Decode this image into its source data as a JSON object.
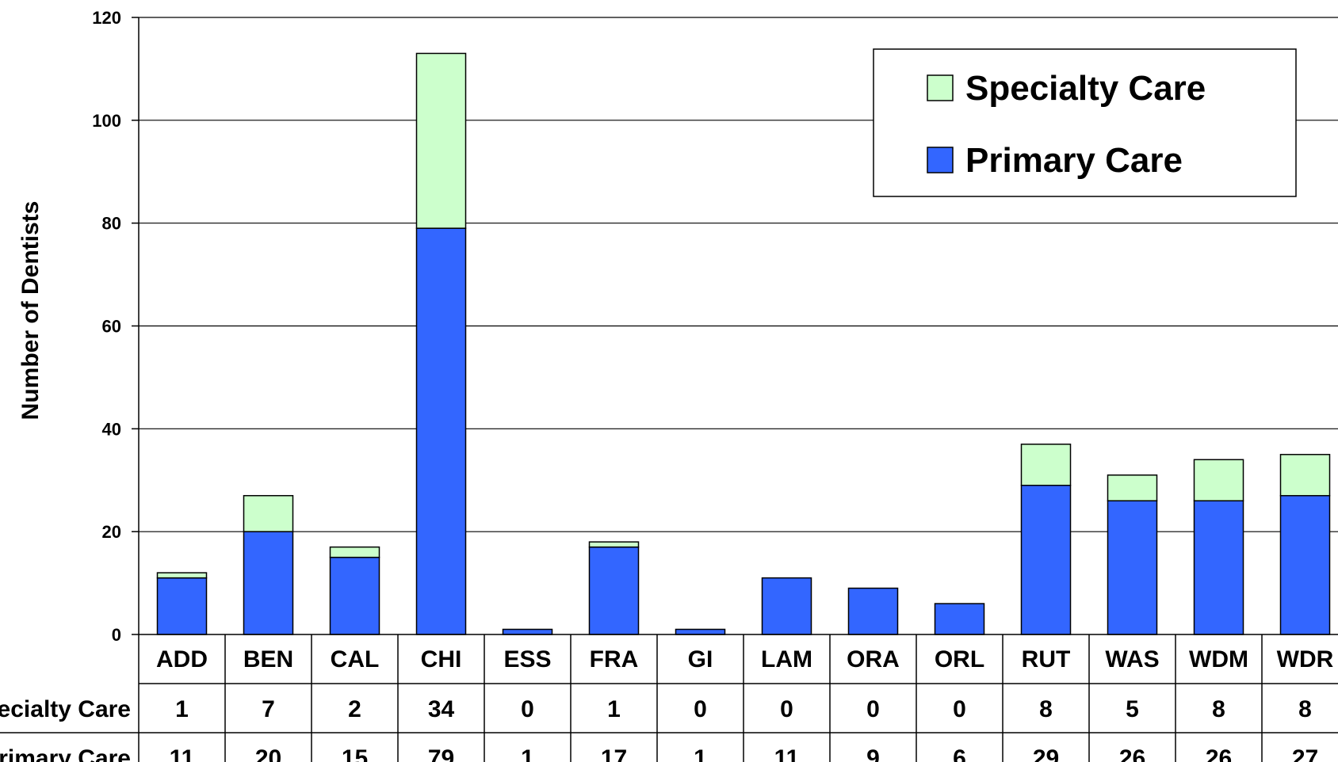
{
  "chart_data": {
    "type": "bar",
    "stacked": true,
    "ylabel": "Number of Dentists",
    "ylim": [
      0,
      120
    ],
    "yticks": [
      0,
      20,
      40,
      60,
      80,
      100,
      120
    ],
    "grid": true,
    "legend_position": "top-right",
    "categories": [
      "ADD",
      "BEN",
      "CAL",
      "CHI",
      "ESS",
      "FRA",
      "GI",
      "LAM",
      "ORA",
      "ORL",
      "RUT",
      "WAS",
      "WDM",
      "WDR"
    ],
    "series": [
      {
        "name": "Primary Care",
        "color": "#3366FF",
        "values": [
          11,
          20,
          15,
          79,
          1,
          17,
          1,
          11,
          9,
          6,
          29,
          26,
          26,
          27
        ]
      },
      {
        "name": "Specialty Care",
        "color": "#CCFFCC",
        "values": [
          1,
          7,
          2,
          34,
          0,
          1,
          0,
          0,
          0,
          0,
          8,
          5,
          8,
          8
        ]
      }
    ],
    "legend": [
      "Specialty Care",
      "Primary Care"
    ],
    "data_table": {
      "rows": [
        {
          "label": "Specialty Care",
          "series": 1
        },
        {
          "label": "Primary Care",
          "series": 0
        }
      ]
    }
  }
}
